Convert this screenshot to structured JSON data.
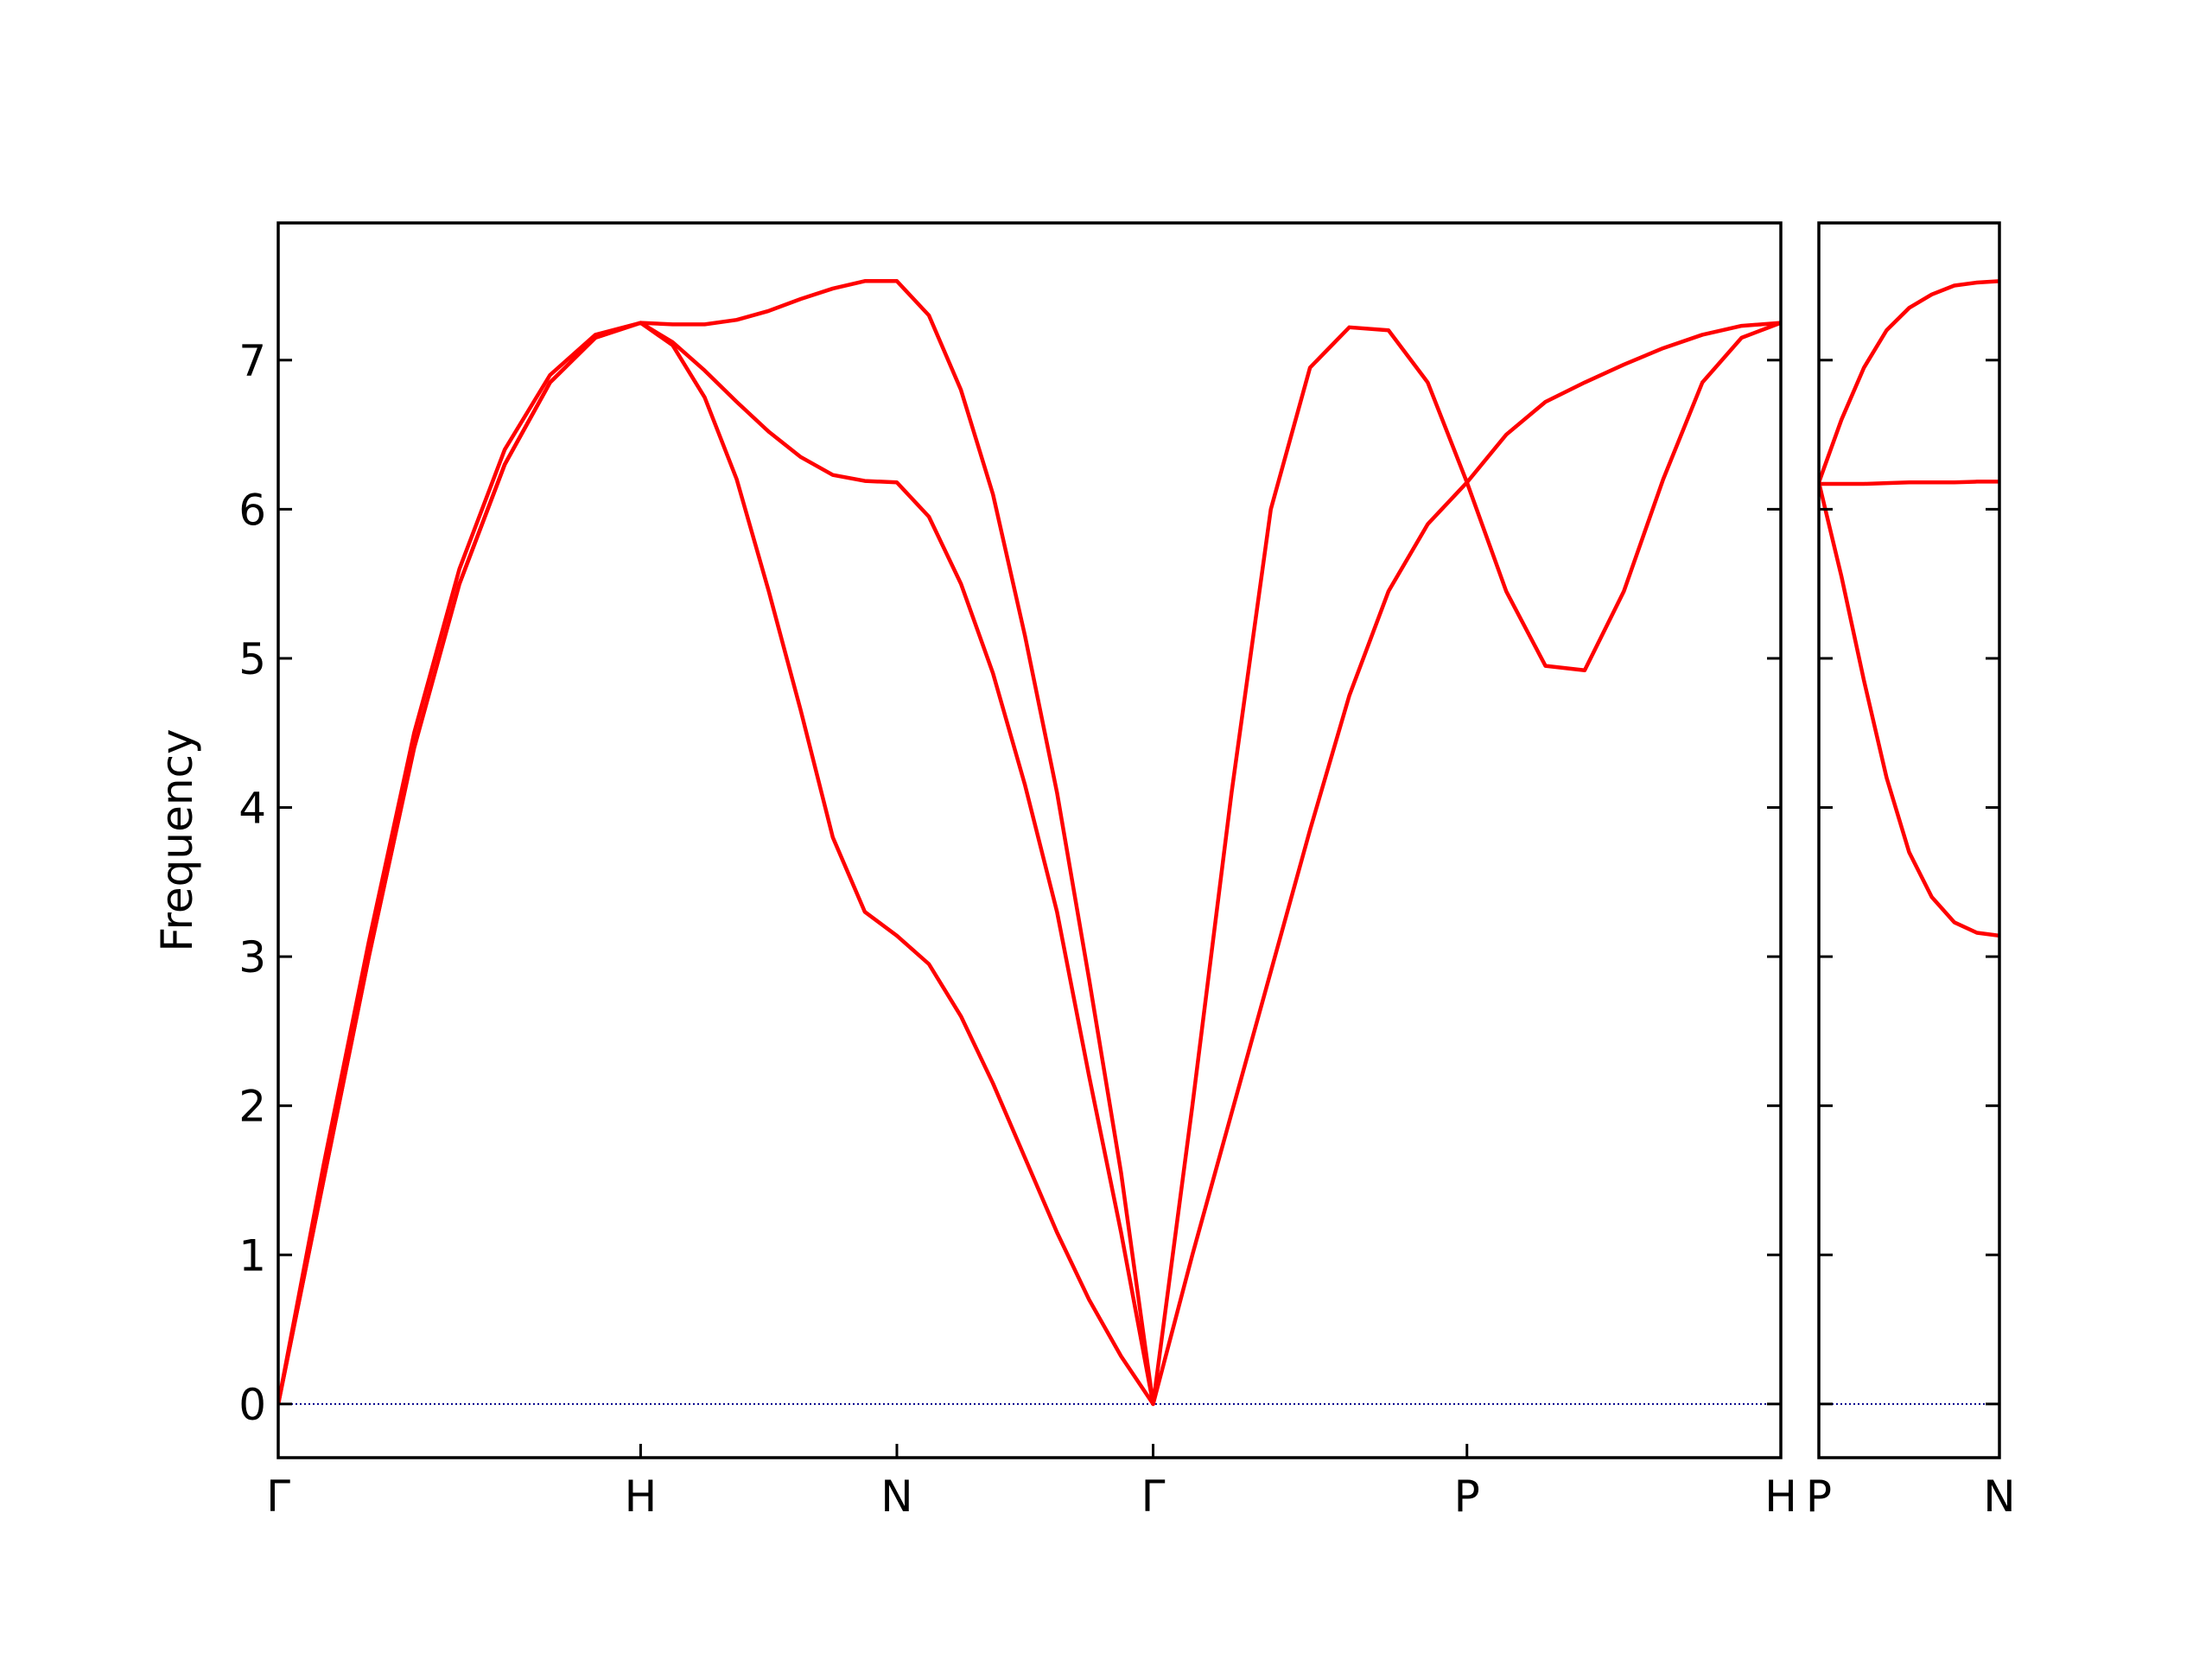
{
  "chart_data": [
    {
      "type": "line",
      "ylabel": "Frequency",
      "xlim": [
        0,
        4.1463
      ],
      "ylim": [
        -0.36,
        7.92
      ],
      "xticks": [
        {
          "value": 0,
          "label": "Γ"
        },
        {
          "value": 1,
          "label": "H"
        },
        {
          "value": 1.7071,
          "label": "N"
        },
        {
          "value": 2.4142,
          "label": "Γ"
        },
        {
          "value": 3.2802,
          "label": "P"
        },
        {
          "value": 4.1463,
          "label": "H"
        }
      ],
      "yticks": [
        0,
        1,
        2,
        3,
        4,
        5,
        6,
        7
      ],
      "show_ytick_labels": true,
      "hlines": [
        {
          "value": 0,
          "color": "#00008b",
          "style": "dotted"
        }
      ],
      "x": [
        0,
        0.125,
        0.25,
        0.375,
        0.5,
        0.625,
        0.75,
        0.875,
        1,
        1.0884,
        1.1768,
        1.2652,
        1.3536,
        1.4419,
        1.5303,
        1.6187,
        1.7071,
        1.7955,
        1.8839,
        1.9723,
        2.0607,
        2.149,
        2.2374,
        2.3258,
        2.4142,
        2.5225,
        2.6307,
        2.739,
        2.8472,
        2.9555,
        3.0637,
        3.172,
        3.2802,
        3.3885,
        3.4967,
        3.605,
        3.7132,
        3.8215,
        3.9297,
        4.038,
        4.1463
      ],
      "series": [
        {
          "color": "#ff0000",
          "values": [
            0,
            1.5,
            3.0,
            4.4,
            5.5,
            6.3,
            6.85,
            7.15,
            7.25,
            7.1,
            6.75,
            6.2,
            5.45,
            4.65,
            3.8,
            3.3,
            3.14,
            2.95,
            2.6,
            2.15,
            1.65,
            1.15,
            0.7,
            0.32,
            0,
            1.0,
            1.95,
            2.9,
            3.85,
            4.75,
            5.45,
            5.9,
            6.18,
            6.5,
            6.72,
            6.85,
            6.97,
            7.08,
            7.17,
            7.23,
            7.25
          ]
        },
        {
          "color": "#ff0000",
          "values": [
            0,
            1.5,
            3.0,
            4.4,
            5.5,
            6.3,
            6.85,
            7.15,
            7.25,
            7.12,
            6.93,
            6.72,
            6.52,
            6.35,
            6.23,
            6.19,
            6.18,
            5.95,
            5.5,
            4.9,
            4.15,
            3.3,
            2.2,
            1.15,
            0,
            2.0,
            4.1,
            6.0,
            6.95,
            7.22,
            7.2,
            6.85,
            6.18,
            5.45,
            4.95,
            4.92,
            5.45,
            6.2,
            6.85,
            7.15,
            7.25
          ]
        },
        {
          "color": "#ff0000",
          "values": [
            0,
            1.6,
            3.1,
            4.5,
            5.6,
            6.4,
            6.9,
            7.17,
            7.25,
            7.24,
            7.24,
            7.27,
            7.33,
            7.41,
            7.48,
            7.53,
            7.53,
            7.3,
            6.8,
            6.1,
            5.15,
            4.1,
            2.85,
            1.55,
            0,
            null,
            null,
            null,
            null,
            null,
            null,
            null,
            null,
            null,
            null,
            null,
            null,
            null,
            null,
            null,
            null
          ]
        }
      ]
    },
    {
      "type": "line",
      "xlim": [
        4.1463,
        4.6463
      ],
      "ylim": [
        -0.36,
        7.92
      ],
      "xticks": [
        {
          "value": 4.1463,
          "label": "P"
        },
        {
          "value": 4.6463,
          "label": "N"
        }
      ],
      "yticks": [
        0,
        1,
        2,
        3,
        4,
        5,
        6,
        7
      ],
      "show_ytick_labels": false,
      "hlines": [
        {
          "value": 0,
          "color": "#00008b",
          "style": "dotted"
        }
      ],
      "x": [
        4.1463,
        4.2088,
        4.2713,
        4.3338,
        4.3963,
        4.4588,
        4.5213,
        4.5838,
        4.6463
      ],
      "series": [
        {
          "color": "#ff0000",
          "values": [
            6.18,
            6.6,
            6.95,
            7.2,
            7.35,
            7.44,
            7.5,
            7.52,
            7.53
          ]
        },
        {
          "color": "#ff0000",
          "values": [
            6.17,
            6.17,
            6.17,
            6.175,
            6.18,
            6.18,
            6.18,
            6.185,
            6.185
          ]
        },
        {
          "color": "#ff0000",
          "values": [
            6.18,
            5.55,
            4.85,
            4.2,
            3.7,
            3.4,
            3.23,
            3.16,
            3.14
          ]
        }
      ]
    }
  ]
}
